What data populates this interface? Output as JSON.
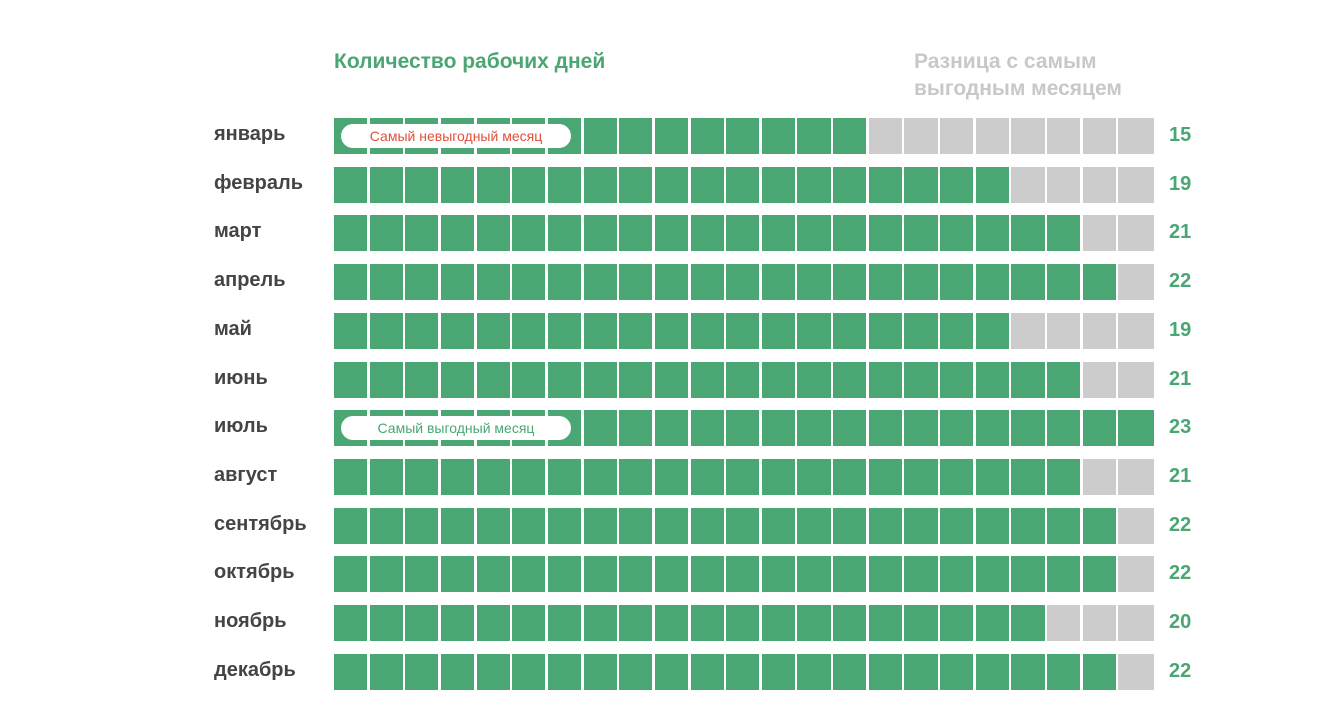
{
  "chart_data": {
    "type": "bar",
    "title_left": "Количество рабочих дней",
    "title_right": "Разница с самым выгодным месяцем",
    "categories": [
      "январь",
      "февраль",
      "март",
      "апрель",
      "май",
      "июнь",
      "июль",
      "август",
      "сентябрь",
      "октябрь",
      "ноябрь",
      "декабрь"
    ],
    "values": [
      15,
      19,
      21,
      22,
      19,
      21,
      23,
      21,
      22,
      22,
      20,
      22
    ],
    "max": 23,
    "annotations": [
      {
        "month_index": 0,
        "text": "Самый невыгодный месяц",
        "color": "#e0503c"
      },
      {
        "month_index": 6,
        "text": "Самый выгодный месяц",
        "color": "#4aa672"
      }
    ],
    "colors": {
      "filled": "#4aa672",
      "empty": "#cccccc",
      "label": "#444444"
    }
  }
}
